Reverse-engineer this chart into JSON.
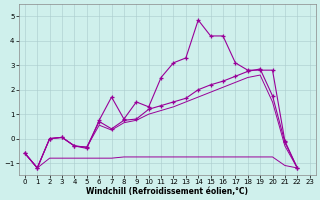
{
  "xlabel": "Windchill (Refroidissement éolien,°C)",
  "background_color": "#cff0ec",
  "line_color": "#990099",
  "grid_color": "#aacccc",
  "xlim": [
    -0.5,
    23.5
  ],
  "ylim": [
    -1.5,
    5.5
  ],
  "yticks": [
    -1,
    0,
    1,
    2,
    3,
    4,
    5
  ],
  "xticks": [
    0,
    1,
    2,
    3,
    4,
    5,
    6,
    7,
    8,
    9,
    10,
    11,
    12,
    13,
    14,
    15,
    16,
    17,
    18,
    19,
    20,
    21,
    22,
    23
  ],
  "line1_x": [
    0,
    1,
    2,
    3,
    4,
    5,
    6,
    7,
    8,
    9,
    10,
    11,
    12,
    13,
    14,
    15,
    16,
    17,
    18,
    19,
    20,
    21,
    22
  ],
  "line1_y": [
    -0.6,
    -1.2,
    0.0,
    0.05,
    -0.3,
    -0.4,
    0.75,
    1.7,
    0.8,
    1.5,
    1.3,
    2.5,
    3.1,
    3.3,
    4.85,
    4.2,
    4.2,
    3.1,
    2.8,
    2.8,
    2.8,
    -0.1,
    -1.2
  ],
  "line2_x": [
    0,
    1,
    2,
    3,
    4,
    5,
    6,
    7,
    8,
    9,
    10,
    11,
    12,
    13,
    14,
    15,
    16,
    17,
    18,
    19,
    20,
    21,
    22
  ],
  "line2_y": [
    -0.6,
    -1.2,
    0.0,
    0.05,
    -0.3,
    -0.35,
    0.7,
    0.4,
    0.75,
    0.8,
    1.2,
    1.35,
    1.5,
    1.65,
    2.0,
    2.2,
    2.35,
    2.55,
    2.75,
    2.85,
    1.75,
    -0.15,
    -1.2
  ],
  "line3_x": [
    0,
    1,
    2,
    3,
    4,
    5,
    6,
    7,
    8,
    9,
    10,
    11,
    12,
    13,
    14,
    15,
    16,
    17,
    18,
    19,
    20,
    21,
    22
  ],
  "line3_y": [
    -0.6,
    -1.2,
    -0.8,
    -0.8,
    -0.8,
    -0.8,
    -0.8,
    -0.8,
    -0.75,
    -0.75,
    -0.75,
    -0.75,
    -0.75,
    -0.75,
    -0.75,
    -0.75,
    -0.75,
    -0.75,
    -0.75,
    -0.75,
    -0.75,
    -1.1,
    -1.2
  ],
  "line4_x": [
    0,
    1,
    2,
    3,
    4,
    5,
    6,
    7,
    8,
    9,
    10,
    11,
    12,
    13,
    14,
    15,
    16,
    17,
    18,
    19,
    20,
    21,
    22
  ],
  "line4_y": [
    -0.6,
    -1.2,
    0.0,
    0.05,
    -0.3,
    -0.35,
    0.55,
    0.35,
    0.65,
    0.75,
    1.0,
    1.15,
    1.3,
    1.5,
    1.7,
    1.9,
    2.1,
    2.3,
    2.5,
    2.6,
    1.5,
    -0.3,
    -1.2
  ]
}
